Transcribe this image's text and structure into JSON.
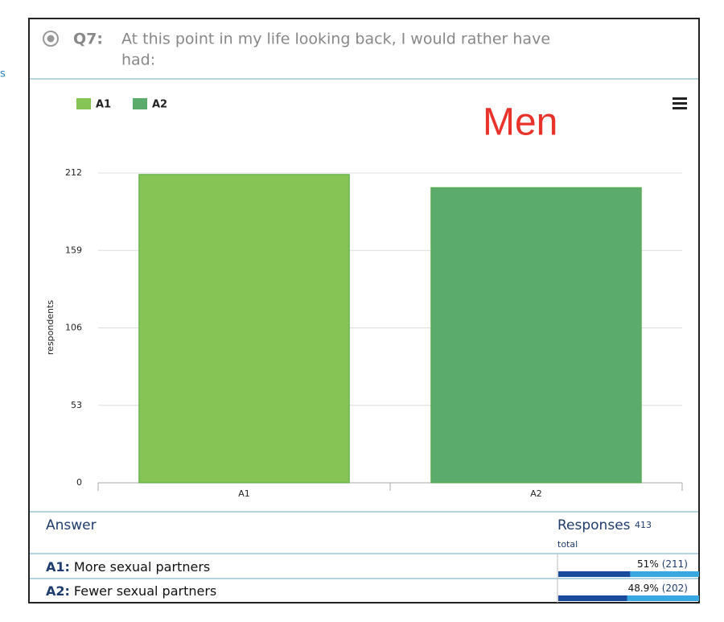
{
  "left_fragment": "s",
  "question": {
    "number": "Q7:",
    "line1": "At this point in my life looking back, I would rather have",
    "line2": "had:"
  },
  "chart_data": {
    "type": "bar",
    "annotation": "Men",
    "y_label": "respondents",
    "categories": [
      "A1",
      "A2"
    ],
    "series": [
      {
        "name": "A1",
        "color": "#86c555",
        "values": [
          211,
          null
        ]
      },
      {
        "name": "A2",
        "color": "#5bab6c",
        "values": [
          null,
          202
        ]
      }
    ],
    "ylim": [
      0,
      212
    ],
    "yticks": [
      0,
      53,
      106,
      159,
      212
    ],
    "grid": true,
    "legend": "top-left"
  },
  "table": {
    "answer_header": "Answer",
    "responses_header": "Responses",
    "total": "413",
    "total_label": "total",
    "rows": [
      {
        "code": "A1:",
        "text": "More sexual partners",
        "percent": 51,
        "percent_label": "51%",
        "count_label": "(211)"
      },
      {
        "code": "A2:",
        "text": "Fewer sexual partners",
        "percent": 48.9,
        "percent_label": "48.9%",
        "count_label": "(202)"
      }
    ]
  }
}
